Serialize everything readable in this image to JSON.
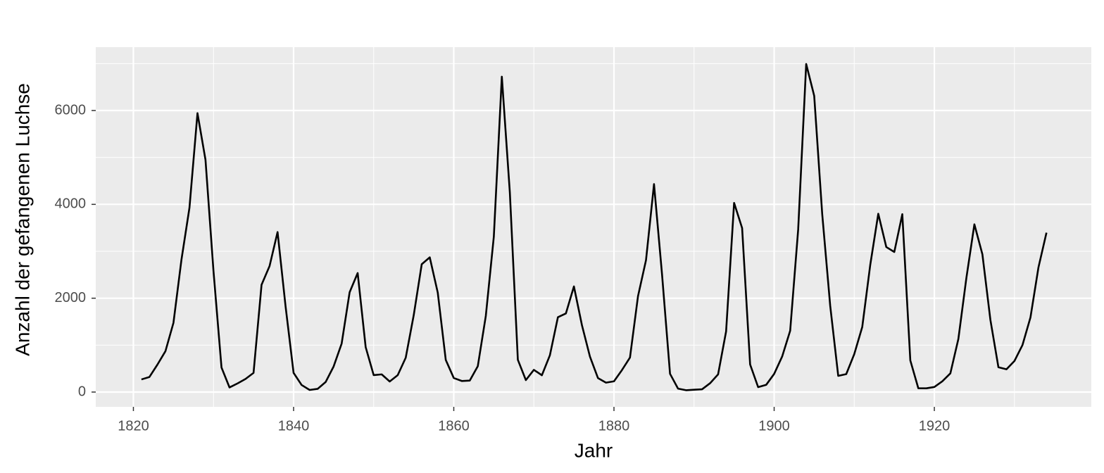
{
  "chart_data": {
    "type": "line",
    "x_label": "Jahr",
    "y_label": "Anzahl der gefangenen Luchse",
    "x": [
      1821,
      1822,
      1823,
      1824,
      1825,
      1826,
      1827,
      1828,
      1829,
      1830,
      1831,
      1832,
      1833,
      1834,
      1835,
      1836,
      1837,
      1838,
      1839,
      1840,
      1841,
      1842,
      1843,
      1844,
      1845,
      1846,
      1847,
      1848,
      1849,
      1850,
      1851,
      1852,
      1853,
      1854,
      1855,
      1856,
      1857,
      1858,
      1859,
      1860,
      1861,
      1862,
      1863,
      1864,
      1865,
      1866,
      1867,
      1868,
      1869,
      1870,
      1871,
      1872,
      1873,
      1874,
      1875,
      1876,
      1877,
      1878,
      1879,
      1880,
      1881,
      1882,
      1883,
      1884,
      1885,
      1886,
      1887,
      1888,
      1889,
      1890,
      1891,
      1892,
      1893,
      1894,
      1895,
      1896,
      1897,
      1898,
      1899,
      1900,
      1901,
      1902,
      1903,
      1904,
      1905,
      1906,
      1907,
      1908,
      1909,
      1910,
      1911,
      1912,
      1913,
      1914,
      1915,
      1916,
      1917,
      1918,
      1919,
      1920,
      1921,
      1922,
      1923,
      1924,
      1925,
      1926,
      1927,
      1928,
      1929,
      1930,
      1931,
      1932,
      1933,
      1934
    ],
    "series": [
      {
        "color": "#000000",
        "values": [
          269,
          321,
          585,
          871,
          1475,
          2821,
          3928,
          5943,
          4950,
          2577,
          523,
          98,
          184,
          279,
          409,
          2285,
          2685,
          3409,
          1824,
          409,
          151,
          45,
          68,
          213,
          546,
          1033,
          2129,
          2536,
          957,
          361,
          377,
          225,
          360,
          731,
          1638,
          2725,
          2871,
          2119,
          684,
          299,
          236,
          245,
          552,
          1623,
          3311,
          6721,
          4254,
          687,
          255,
          473,
          358,
          784,
          1594,
          1676,
          2251,
          1426,
          756,
          299,
          201,
          229,
          469,
          736,
          2042,
          2811,
          4431,
          2511,
          389,
          73,
          39,
          49,
          59,
          188,
          377,
          1292,
          4031,
          3495,
          587,
          105,
          153,
          387,
          758,
          1307,
          3465,
          6991,
          6313,
          3794,
          1836,
          345,
          382,
          808,
          1388,
          2713,
          3800,
          3091,
          2985,
          3790,
          674,
          81,
          80,
          108,
          229,
          399,
          1132,
          2432,
          3574,
          2935,
          1537,
          529,
          485,
          662,
          1000,
          1590,
          2657,
          3396
        ]
      }
    ],
    "xlim": [
      1815.3,
      1939.6
    ],
    "ylim": [
      -315,
      7350
    ],
    "xticks": [
      1820,
      1840,
      1860,
      1880,
      1900,
      1920
    ],
    "yticks": [
      0,
      2000,
      4000,
      6000
    ],
    "grid": true,
    "panel_color": "#ebebeb"
  }
}
